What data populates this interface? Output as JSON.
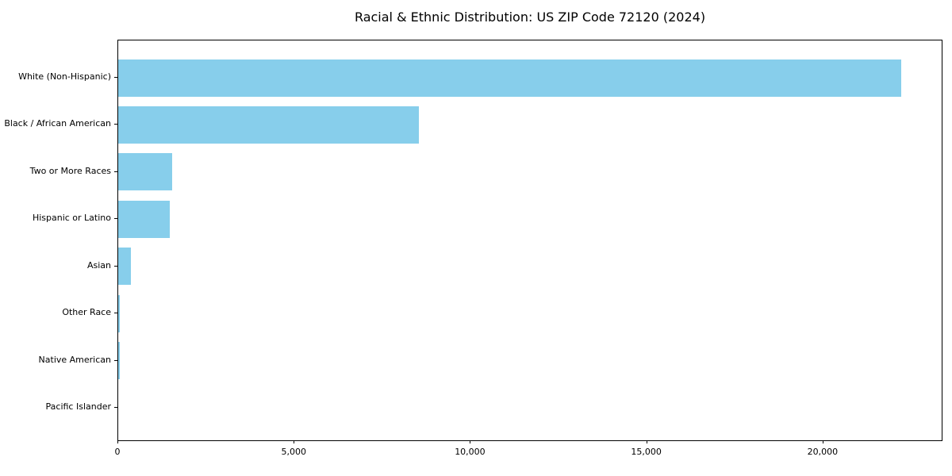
{
  "title": "Racial & Ethnic Distribution: US ZIP Code 72120 (2024)",
  "chart_data": {
    "type": "bar",
    "orientation": "horizontal",
    "title": "Racial & Ethnic Distribution: US ZIP Code 72120 (2024)",
    "categories": [
      "White (Non-Hispanic)",
      "Black / African American",
      "Two or More Races",
      "Hispanic or Latino",
      "Asian",
      "Other Race",
      "Native American",
      "Pacific Islander"
    ],
    "values": [
      22250,
      8540,
      1530,
      1470,
      350,
      45,
      55,
      0
    ],
    "bar_color": "#87CEEB",
    "xlabel": "",
    "ylabel": "",
    "xlim": [
      0,
      23400
    ],
    "x_ticks": [
      0,
      5000,
      10000,
      15000,
      20000
    ],
    "x_tick_labels": [
      "0",
      "5,000",
      "10,000",
      "15,000",
      "20,000"
    ],
    "grid": false,
    "legend": null,
    "background_color": "#ffffff",
    "text_color": "#000000"
  }
}
